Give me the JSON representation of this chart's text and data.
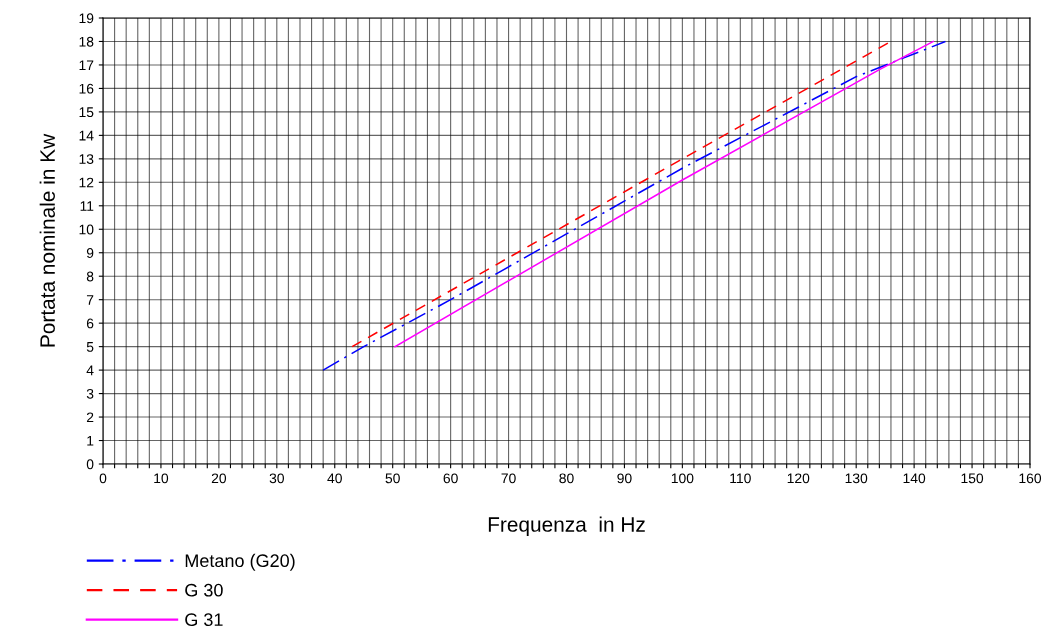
{
  "chart_data": {
    "type": "line",
    "xlabel": "Frequenza  in Hz",
    "ylabel": "Portata nominale in Kw",
    "xlim": [
      0,
      160
    ],
    "ylim": [
      0,
      19
    ],
    "xticks": [
      0,
      {
        "value": 2,
        "label": null
      },
      {
        "value": 4,
        "label": null
      },
      {
        "value": 6,
        "label": null
      },
      {
        "value": 8,
        "label": null
      },
      10,
      {
        "value": 12,
        "label": null
      },
      {
        "value": 14,
        "label": null
      },
      {
        "value": 16,
        "label": null
      },
      {
        "value": 18,
        "label": null
      },
      20,
      {
        "value": 22,
        "label": null
      },
      {
        "value": 24,
        "label": null
      },
      {
        "value": 26,
        "label": null
      },
      {
        "value": 28,
        "label": null
      },
      30,
      {
        "value": 32,
        "label": null
      },
      {
        "value": 34,
        "label": null
      },
      {
        "value": 36,
        "label": null
      },
      {
        "value": 38,
        "label": null
      },
      40,
      {
        "value": 42,
        "label": null
      },
      {
        "value": 44,
        "label": null
      },
      {
        "value": 46,
        "label": null
      },
      {
        "value": 48,
        "label": null
      },
      50,
      {
        "value": 52,
        "label": null
      },
      {
        "value": 54,
        "label": null
      },
      {
        "value": 56,
        "label": null
      },
      {
        "value": 58,
        "label": null
      },
      60,
      {
        "value": 62,
        "label": null
      },
      {
        "value": 64,
        "label": null
      },
      {
        "value": 66,
        "label": null
      },
      {
        "value": 68,
        "label": null
      },
      70,
      {
        "value": 72,
        "label": null
      },
      {
        "value": 74,
        "label": null
      },
      {
        "value": 76,
        "label": null
      },
      {
        "value": 78,
        "label": null
      },
      80,
      {
        "value": 82,
        "label": null
      },
      {
        "value": 84,
        "label": null
      },
      {
        "value": 86,
        "label": null
      },
      {
        "value": 88,
        "label": null
      },
      90,
      {
        "value": 92,
        "label": null
      },
      {
        "value": 94,
        "label": null
      },
      {
        "value": 96,
        "label": null
      },
      {
        "value": 98,
        "label": null
      },
      100,
      {
        "value": 102,
        "label": null
      },
      {
        "value": 104,
        "label": null
      },
      {
        "value": 106,
        "label": null
      },
      {
        "value": 108,
        "label": null
      },
      110,
      {
        "value": 112,
        "label": null
      },
      {
        "value": 114,
        "label": null
      },
      {
        "value": 116,
        "label": null
      },
      {
        "value": 118,
        "label": null
      },
      120,
      {
        "value": 122,
        "label": null
      },
      {
        "value": 124,
        "label": null
      },
      {
        "value": 126,
        "label": null
      },
      {
        "value": 128,
        "label": null
      },
      130,
      {
        "value": 132,
        "label": null
      },
      {
        "value": 134,
        "label": null
      },
      {
        "value": 136,
        "label": null
      },
      {
        "value": 138,
        "label": null
      },
      140,
      {
        "value": 142,
        "label": null
      },
      {
        "value": 144,
        "label": null
      },
      {
        "value": 146,
        "label": null
      },
      {
        "value": 148,
        "label": null
      },
      150,
      {
        "value": 152,
        "label": null
      },
      {
        "value": 154,
        "label": null
      },
      {
        "value": 156,
        "label": null
      },
      {
        "value": 158,
        "label": null
      },
      160
    ],
    "yticks": [
      0,
      1,
      2,
      3,
      4,
      5,
      6,
      7,
      8,
      9,
      10,
      11,
      12,
      13,
      14,
      15,
      16,
      17,
      18,
      19
    ],
    "grid": true,
    "legend": "bottom left",
    "marker": "none",
    "series": [
      {
        "name": "Metano (G20)",
        "color": "#0000ff",
        "line_style": "dashdot",
        "x": [
          38,
          45,
          60,
          80,
          100,
          120,
          130,
          145.4
        ],
        "values": [
          4,
          5,
          7,
          9.8,
          12.6,
          15.2,
          16.5,
          18
        ]
      },
      {
        "name": "G 30",
        "color": "#ff0000",
        "line_style": "dashed",
        "x": [
          43,
          100,
          136
        ],
        "values": [
          5,
          13,
          18
        ]
      },
      {
        "name": "G 31",
        "color": "#ff00ff",
        "line_style": "solid",
        "x": [
          50.4,
          100,
          134,
          143.3
        ],
        "values": [
          5,
          12.1,
          16.8,
          18
        ]
      }
    ]
  }
}
